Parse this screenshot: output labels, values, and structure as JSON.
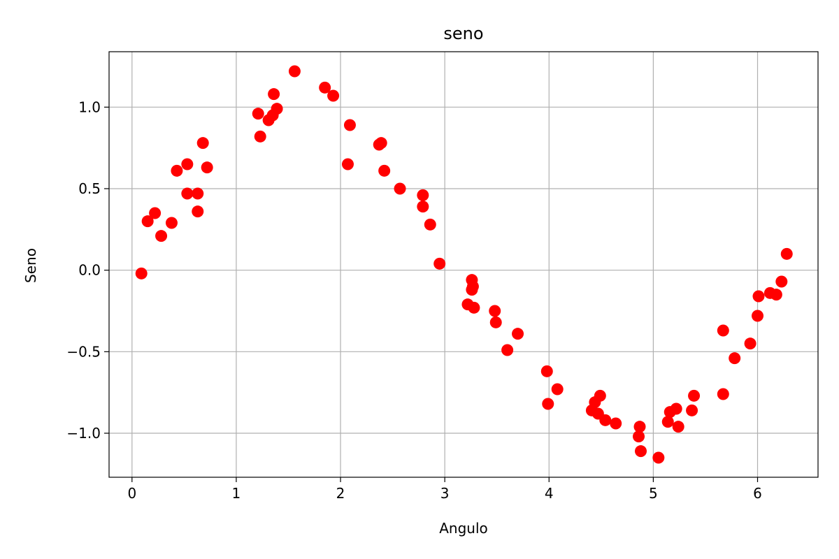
{
  "chart_data": {
    "type": "scatter",
    "title": "seno",
    "xlabel": "Angulo",
    "ylabel": "Seno",
    "xlim": [
      -0.22,
      6.58
    ],
    "ylim": [
      -1.27,
      1.34
    ],
    "xticks": [
      0,
      1,
      2,
      3,
      4,
      5,
      6
    ],
    "xtick_labels": [
      "0",
      "1",
      "2",
      "3",
      "4",
      "5",
      "6"
    ],
    "yticks": [
      -1.0,
      -0.5,
      0.0,
      0.5,
      1.0
    ],
    "ytick_labels": [
      "−1.0",
      "−0.5",
      "0.0",
      "0.5",
      "1.0"
    ],
    "grid": true,
    "marker_color": "#ff0000",
    "series": [
      {
        "points": [
          [
            0.09,
            -0.02
          ],
          [
            0.15,
            0.3
          ],
          [
            0.22,
            0.35
          ],
          [
            0.28,
            0.21
          ],
          [
            0.38,
            0.29
          ],
          [
            0.43,
            0.61
          ],
          [
            0.53,
            0.47
          ],
          [
            0.53,
            0.65
          ],
          [
            0.63,
            0.47
          ],
          [
            0.63,
            0.36
          ],
          [
            0.68,
            0.78
          ],
          [
            0.72,
            0.63
          ],
          [
            1.21,
            0.96
          ],
          [
            1.23,
            0.82
          ],
          [
            1.31,
            0.92
          ],
          [
            1.35,
            0.95
          ],
          [
            1.36,
            1.08
          ],
          [
            1.39,
            0.99
          ],
          [
            1.56,
            1.22
          ],
          [
            1.85,
            1.12
          ],
          [
            1.93,
            1.07
          ],
          [
            2.07,
            0.65
          ],
          [
            2.09,
            0.89
          ],
          [
            2.37,
            0.77
          ],
          [
            2.39,
            0.78
          ],
          [
            2.42,
            0.61
          ],
          [
            2.57,
            0.5
          ],
          [
            2.79,
            0.46
          ],
          [
            2.79,
            0.39
          ],
          [
            2.86,
            0.28
          ],
          [
            2.95,
            0.04
          ],
          [
            3.22,
            -0.21
          ],
          [
            3.26,
            -0.06
          ],
          [
            3.26,
            -0.12
          ],
          [
            3.27,
            -0.1
          ],
          [
            3.28,
            -0.23
          ],
          [
            3.48,
            -0.25
          ],
          [
            3.49,
            -0.32
          ],
          [
            3.6,
            -0.49
          ],
          [
            3.7,
            -0.39
          ],
          [
            3.98,
            -0.62
          ],
          [
            3.99,
            -0.82
          ],
          [
            4.08,
            -0.73
          ],
          [
            4.41,
            -0.86
          ],
          [
            4.44,
            -0.81
          ],
          [
            4.47,
            -0.88
          ],
          [
            4.49,
            -0.77
          ],
          [
            4.54,
            -0.92
          ],
          [
            4.64,
            -0.94
          ],
          [
            4.86,
            -1.02
          ],
          [
            4.87,
            -0.96
          ],
          [
            4.88,
            -1.11
          ],
          [
            5.05,
            -1.15
          ],
          [
            5.14,
            -0.93
          ],
          [
            5.16,
            -0.87
          ],
          [
            5.22,
            -0.85
          ],
          [
            5.24,
            -0.96
          ],
          [
            5.37,
            -0.86
          ],
          [
            5.39,
            -0.77
          ],
          [
            5.67,
            -0.37
          ],
          [
            5.67,
            -0.76
          ],
          [
            5.78,
            -0.54
          ],
          [
            5.93,
            -0.45
          ],
          [
            6.0,
            -0.28
          ],
          [
            6.01,
            -0.16
          ],
          [
            6.12,
            -0.14
          ],
          [
            6.18,
            -0.15
          ],
          [
            6.23,
            -0.07
          ],
          [
            6.28,
            0.1
          ]
        ]
      }
    ]
  }
}
